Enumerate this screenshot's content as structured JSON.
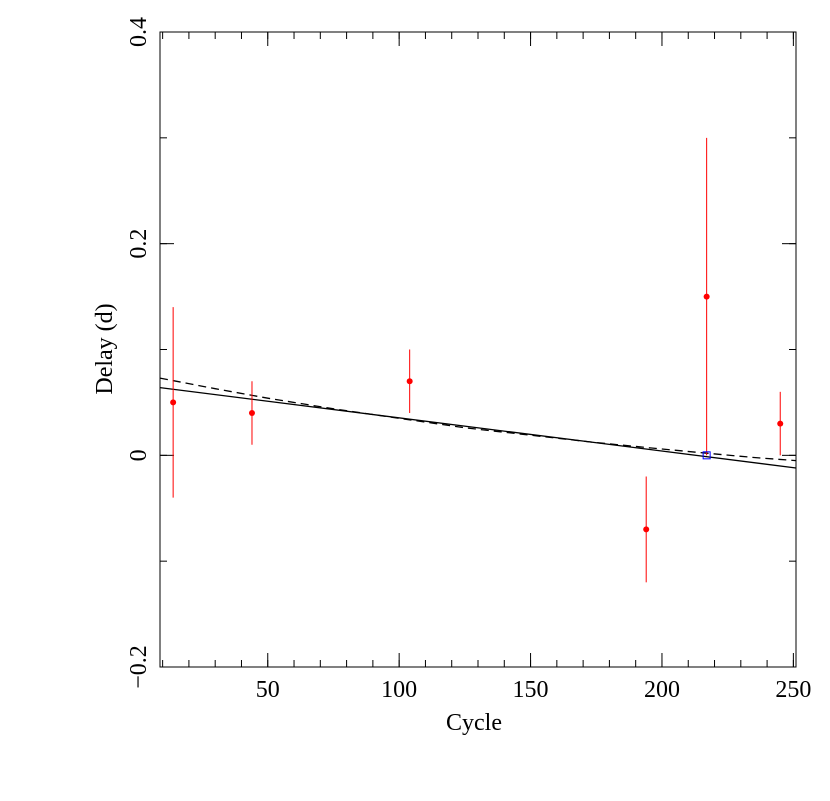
{
  "chart_data": {
    "type": "scatter",
    "xlabel": "Cycle",
    "ylabel": "Delay (d)",
    "xlim": [
      9,
      251
    ],
    "ylim": [
      -0.2,
      0.4
    ],
    "x_ticks_major": [
      50,
      100,
      150,
      200,
      250
    ],
    "x_tick_labels": [
      "50",
      "100",
      "150",
      "200",
      "250"
    ],
    "x_ticks_minor_step": 10,
    "y_ticks_major": [
      -0.2,
      0,
      0.2,
      0.4
    ],
    "y_tick_labels": [
      "−0.2",
      "0",
      "0.2",
      "0.4"
    ],
    "y_ticks_minor_step": 0.1,
    "grid": false,
    "points": [
      {
        "x": 14,
        "y": 0.05,
        "err_low": 0.09,
        "err_high": 0.09
      },
      {
        "x": 44,
        "y": 0.04,
        "err_low": 0.03,
        "err_high": 0.03
      },
      {
        "x": 104,
        "y": 0.07,
        "err_low": 0.03,
        "err_high": 0.03
      },
      {
        "x": 194,
        "y": -0.07,
        "err_low": 0.05,
        "err_high": 0.05
      },
      {
        "x": 217,
        "y": 0.15,
        "err_low": 0.15,
        "err_high": 0.15
      },
      {
        "x": 245,
        "y": 0.03,
        "err_low": 0.03,
        "err_high": 0.03
      }
    ],
    "reference_point": {
      "x": 217,
      "y": 0.0,
      "marker": "open-square"
    },
    "fit_lines": [
      {
        "style": "solid",
        "x": [
          9,
          251
        ],
        "y": [
          0.064,
          -0.012
        ]
      },
      {
        "style": "dashed",
        "x": [
          9,
          30,
          50,
          75,
          100,
          125,
          150,
          175,
          200,
          217,
          235,
          251
        ],
        "y": [
          0.073,
          0.063,
          0.054,
          0.044,
          0.035,
          0.026,
          0.019,
          0.012,
          0.006,
          0.002,
          -0.002,
          -0.005
        ]
      }
    ],
    "colors": {
      "points": "#ff0000",
      "reference": "#0000ff",
      "lines": "#000000",
      "frame": "#000000"
    }
  }
}
